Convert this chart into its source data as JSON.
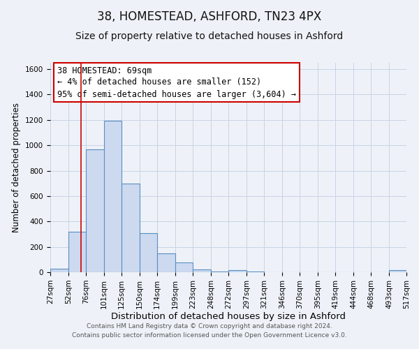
{
  "title": "38, HOMESTEAD, ASHFORD, TN23 4PX",
  "subtitle": "Size of property relative to detached houses in Ashford",
  "xlabel": "Distribution of detached houses by size in Ashford",
  "ylabel": "Number of detached properties",
  "bin_edges": [
    27,
    52,
    76,
    101,
    125,
    150,
    174,
    199,
    223,
    248,
    272,
    297,
    321,
    346,
    370,
    395,
    419,
    444,
    468,
    493,
    517
  ],
  "bin_counts": [
    25,
    320,
    970,
    1195,
    700,
    310,
    150,
    75,
    20,
    5,
    15,
    5,
    0,
    0,
    0,
    0,
    0,
    0,
    0,
    15
  ],
  "bar_facecolor": "#ccd9ef",
  "bar_edgecolor": "#5a8fc2",
  "grid_color": "#c8d3e5",
  "vline_x": 69,
  "vline_color": "#cc0000",
  "annotation_box_text": "38 HOMESTEAD: 69sqm\n← 4% of detached houses are smaller (152)\n95% of semi-detached houses are larger (3,604) →",
  "annotation_box_edgecolor": "#cc0000",
  "annotation_box_facecolor": "#ffffff",
  "ylim": [
    0,
    1650
  ],
  "yticks": [
    0,
    200,
    400,
    600,
    800,
    1000,
    1200,
    1400,
    1600
  ],
  "footer_line1": "Contains HM Land Registry data © Crown copyright and database right 2024.",
  "footer_line2": "Contains public sector information licensed under the Open Government Licence v3.0.",
  "title_fontsize": 12,
  "subtitle_fontsize": 10,
  "xlabel_fontsize": 9.5,
  "ylabel_fontsize": 8.5,
  "tick_fontsize": 7.5,
  "footer_fontsize": 6.5,
  "annotation_fontsize": 8.5,
  "background_color": "#eef2f8"
}
